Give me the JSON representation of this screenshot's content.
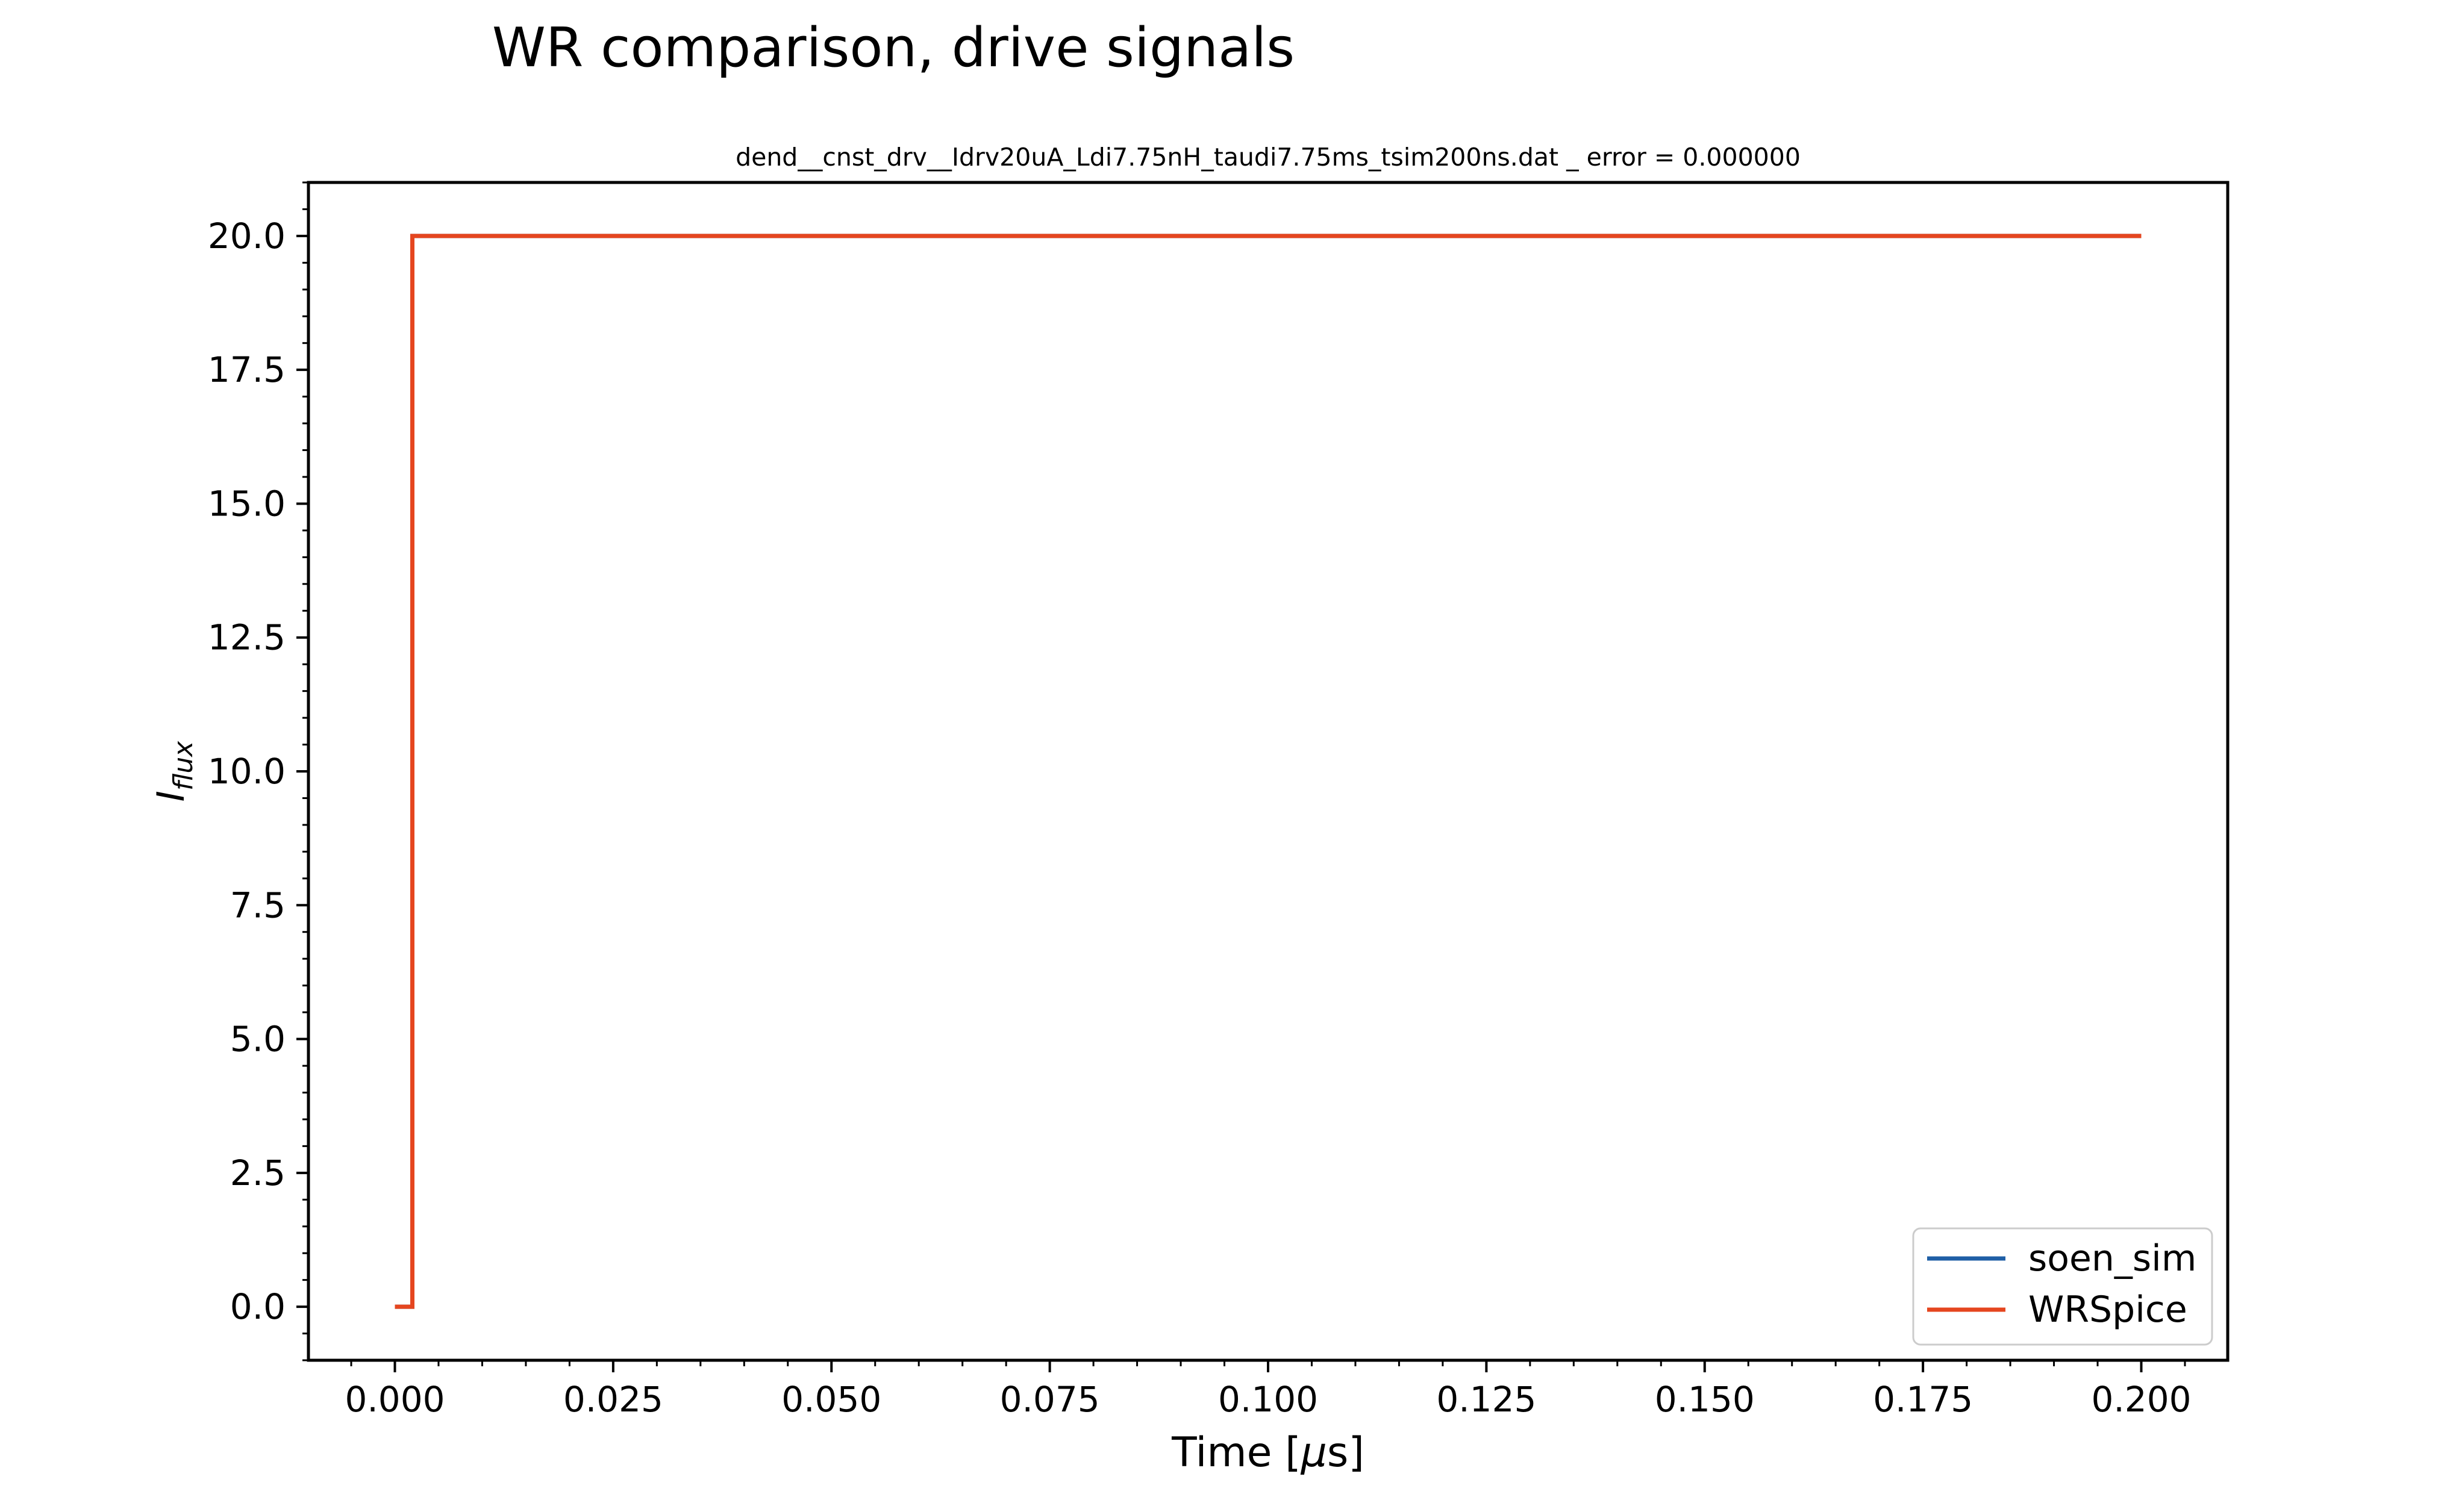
{
  "figure": {
    "suptitle": "WR comparison, drive signals"
  },
  "chart_data": {
    "type": "line",
    "title": "dend__cnst_drv__Idrv20uA_Ldi7.75nH_taudi7.75ms_tsim200ns.dat _ error = 0.000000",
    "xlabel": "Time [μs]",
    "xlabel_parts": [
      "Time [",
      "μ",
      "s]"
    ],
    "ylabel": "I_flux",
    "ylabel_main": "I",
    "ylabel_sub": "flux",
    "xlim": [
      -0.0099,
      0.2099
    ],
    "ylim": [
      -1.0,
      21.0
    ],
    "xticks": [
      0.0,
      0.025,
      0.05,
      0.075,
      0.1,
      0.125,
      0.15,
      0.175,
      0.2
    ],
    "xtick_labels": [
      "0.000",
      "0.025",
      "0.050",
      "0.075",
      "0.100",
      "0.125",
      "0.150",
      "0.175",
      "0.200"
    ],
    "yticks": [
      0.0,
      2.5,
      5.0,
      7.5,
      10.0,
      12.5,
      15.0,
      17.5,
      20.0
    ],
    "ytick_labels": [
      "0.0",
      "2.5",
      "5.0",
      "7.5",
      "10.0",
      "12.5",
      "15.0",
      "17.5",
      "20.0"
    ],
    "x_minor_step": 0.005,
    "y_minor_step": 0.5,
    "grid": false,
    "legend_position": "lower-right",
    "series": [
      {
        "name": "soen_sim",
        "color": "#1f5fa6",
        "x": [
          0.0,
          0.002,
          0.002,
          0.2
        ],
        "y": [
          0.0,
          0.0,
          20.0,
          20.0
        ]
      },
      {
        "name": "WRSpice",
        "color": "#e5461f",
        "x": [
          0.0,
          0.002,
          0.002,
          0.2
        ],
        "y": [
          0.0,
          0.0,
          20.0,
          20.0
        ]
      }
    ]
  }
}
